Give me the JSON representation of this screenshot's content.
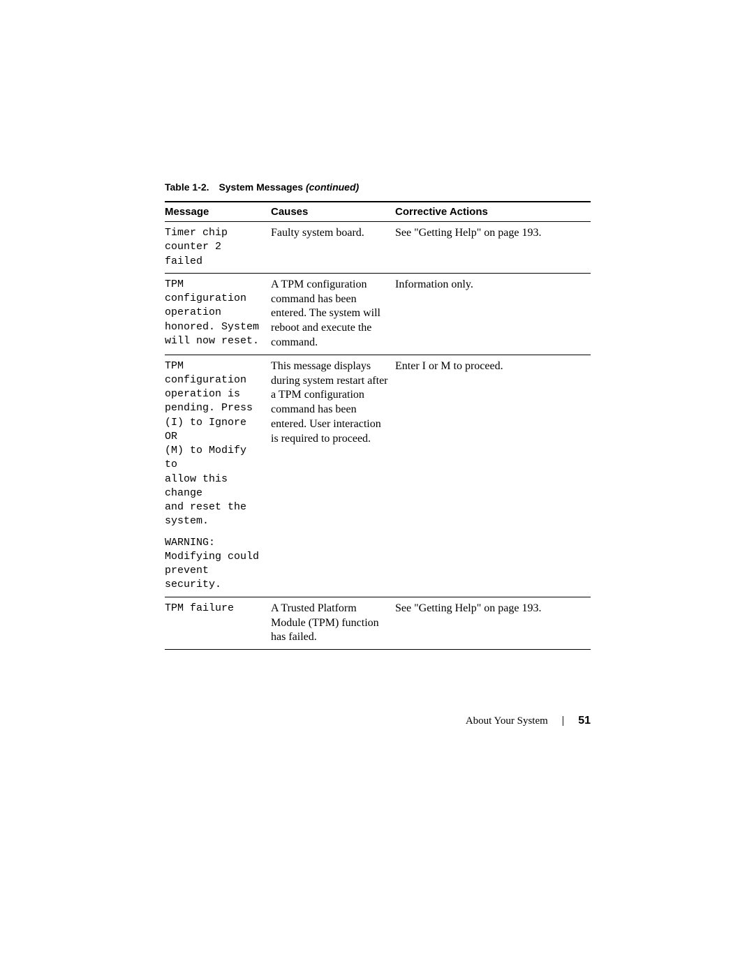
{
  "caption": {
    "prefix": "Table 1-2.",
    "title": "System Messages ",
    "continued": "(continued)"
  },
  "headers": {
    "message": "Message",
    "causes": "Causes",
    "actions": "Corrective Actions"
  },
  "rows": [
    {
      "message": "Timer chip\ncounter 2 failed",
      "causes": "Faulty system board.",
      "actions": "See \"Getting Help\" on page 193."
    },
    {
      "message": "TPM\nconfiguration\noperation\nhonored. System\nwill now reset.",
      "causes": "A TPM configuration command has been entered. The system will reboot and execute the command.",
      "actions": "Information only."
    },
    {
      "message": "TPM\nconfiguration\noperation is\npending. Press\n(I) to Ignore OR\n(M) to Modify to\nallow this change\nand reset the\nsystem.",
      "message2": "WARNING:\nModifying could\nprevent\nsecurity.",
      "causes": "This message displays during system restart after a TPM configuration command has been entered. User interaction is required to proceed.",
      "actions": "Enter I or M to proceed."
    },
    {
      "message": "TPM failure",
      "causes": "A Trusted Platform Module (TPM) function has failed.",
      "actions": "See \"Getting Help\" on page 193."
    }
  ],
  "footer": {
    "section": "About Your System",
    "separator": "|",
    "page": "51"
  }
}
